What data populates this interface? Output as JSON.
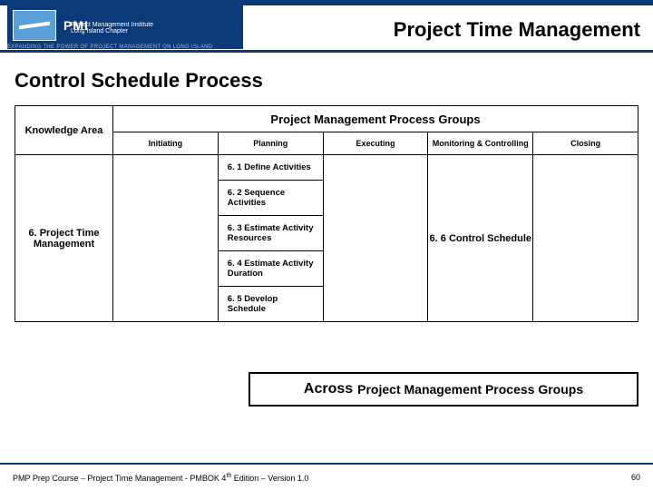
{
  "header": {
    "logo_pmi": "PMI",
    "logo_line1": "Project Management Institute",
    "logo_line2": "Long Island Chapter",
    "tagline": "EXPANDING THE POWER OF PROJECT MANAGEMENT ON LONG ISLAND",
    "title": "Project Time Management"
  },
  "subtitle": "Control Schedule Process",
  "table": {
    "knowledge_area_header": "Knowledge Area",
    "process_groups_header": "Project Management Process Groups",
    "columns": {
      "initiating": "Initiating",
      "planning": "Planning",
      "executing": "Executing",
      "monitoring": "Monitoring & Controlling",
      "closing": "Closing"
    },
    "knowledge_area": "6.  Project Time Management",
    "planning_items": [
      "6. 1 Define Activities",
      "6. 2 Sequence Activities",
      "6. 3 Estimate Activity Resources",
      "6. 4 Estimate Activity Duration",
      "6. 5 Develop Schedule"
    ],
    "monitoring_item": "6. 6  Control Schedule"
  },
  "across": {
    "big": "Across",
    "rest": "Project Management Process Groups"
  },
  "footer": {
    "left_a": "PMP Prep Course – Project Time Management - PMBOK 4",
    "left_b": " Edition – Version 1.0",
    "page": "60"
  },
  "colors": {
    "brand": "#0a3a7a"
  }
}
